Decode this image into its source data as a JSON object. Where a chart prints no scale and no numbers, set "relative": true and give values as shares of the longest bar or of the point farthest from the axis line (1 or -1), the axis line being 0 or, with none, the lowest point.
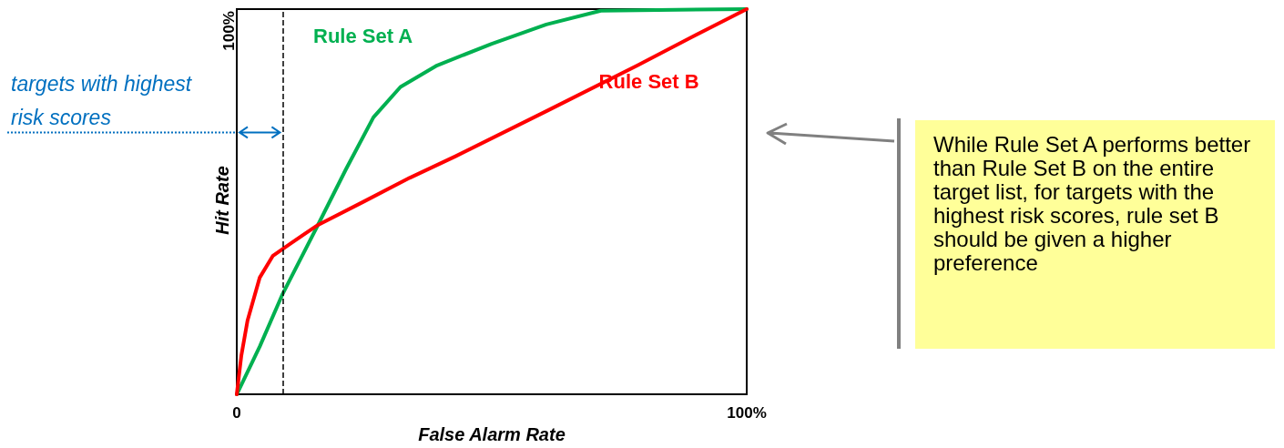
{
  "chart_data": {
    "type": "line",
    "relative": true,
    "xlabel": "False Alarm Rate",
    "ylabel": "Hit Rate",
    "xlim": [
      0,
      100
    ],
    "xticks": [
      {
        "value": 0,
        "label": "0"
      },
      {
        "value": 100,
        "label": "100%"
      }
    ],
    "series": [
      {
        "name": "Rule Set A",
        "color": "#00b050",
        "x": [
          0,
          4.5,
          8.9,
          15.7,
          21.4,
          26.8,
          32.1,
          39.3,
          50,
          60.7,
          71.4,
          100
        ],
        "values": [
          0,
          0.124,
          0.258,
          0.434,
          0.584,
          0.719,
          0.798,
          0.854,
          0.91,
          0.96,
          0.996,
          1
        ]
      },
      {
        "name": "Rule Set B",
        "color": "#ff0000",
        "x": [
          0,
          0.9,
          2.1,
          4.5,
          7.1,
          10.7,
          15.7,
          25,
          33.9,
          42.9,
          60.7,
          78.6,
          89.3,
          100
        ],
        "values": [
          0,
          0.101,
          0.191,
          0.303,
          0.36,
          0.393,
          0.438,
          0.501,
          0.562,
          0.618,
          0.735,
          0.854,
          0.928,
          1
        ]
      }
    ],
    "ref_lines": [
      {
        "axis": "x",
        "value": 9,
        "line_style": "dashed",
        "color": "#000000"
      }
    ],
    "annotations": [
      "targets with highest risk scores",
      "While Rule Set A performs better than Rule Set B on the entire target list, for targets with the highest risk scores, rule set B should be given a higher preference",
      "100%"
    ],
    "grid": false,
    "legend": false,
    "marker": "none",
    "line_style": "solid"
  }
}
